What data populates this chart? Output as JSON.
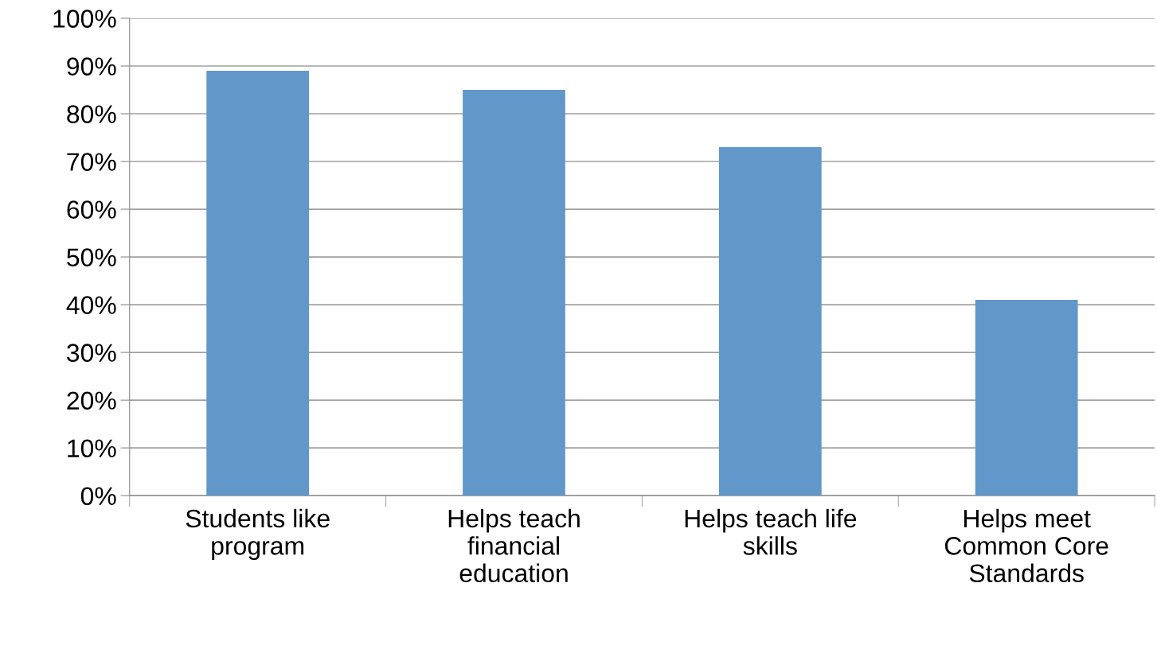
{
  "chart_data": {
    "type": "bar",
    "categories": [
      "Students like program",
      "Helps teach financial education",
      "Helps teach life skills",
      "Helps meet Common Core Standards"
    ],
    "values": [
      89,
      85,
      73,
      41
    ],
    "color": "#6197c9",
    "ylim": [
      0,
      100
    ],
    "yticks": [
      {
        "value": 0,
        "label": "0%"
      },
      {
        "value": 10,
        "label": "10%"
      },
      {
        "value": 20,
        "label": "20%"
      },
      {
        "value": 30,
        "label": "30%"
      },
      {
        "value": 40,
        "label": "40%"
      },
      {
        "value": 50,
        "label": "50%"
      },
      {
        "value": 60,
        "label": "60%"
      },
      {
        "value": 70,
        "label": "70%"
      },
      {
        "value": 80,
        "label": "80%"
      },
      {
        "value": 90,
        "label": "90%"
      },
      {
        "value": 100,
        "label": "100%"
      }
    ],
    "grid": "y",
    "legend": false
  }
}
